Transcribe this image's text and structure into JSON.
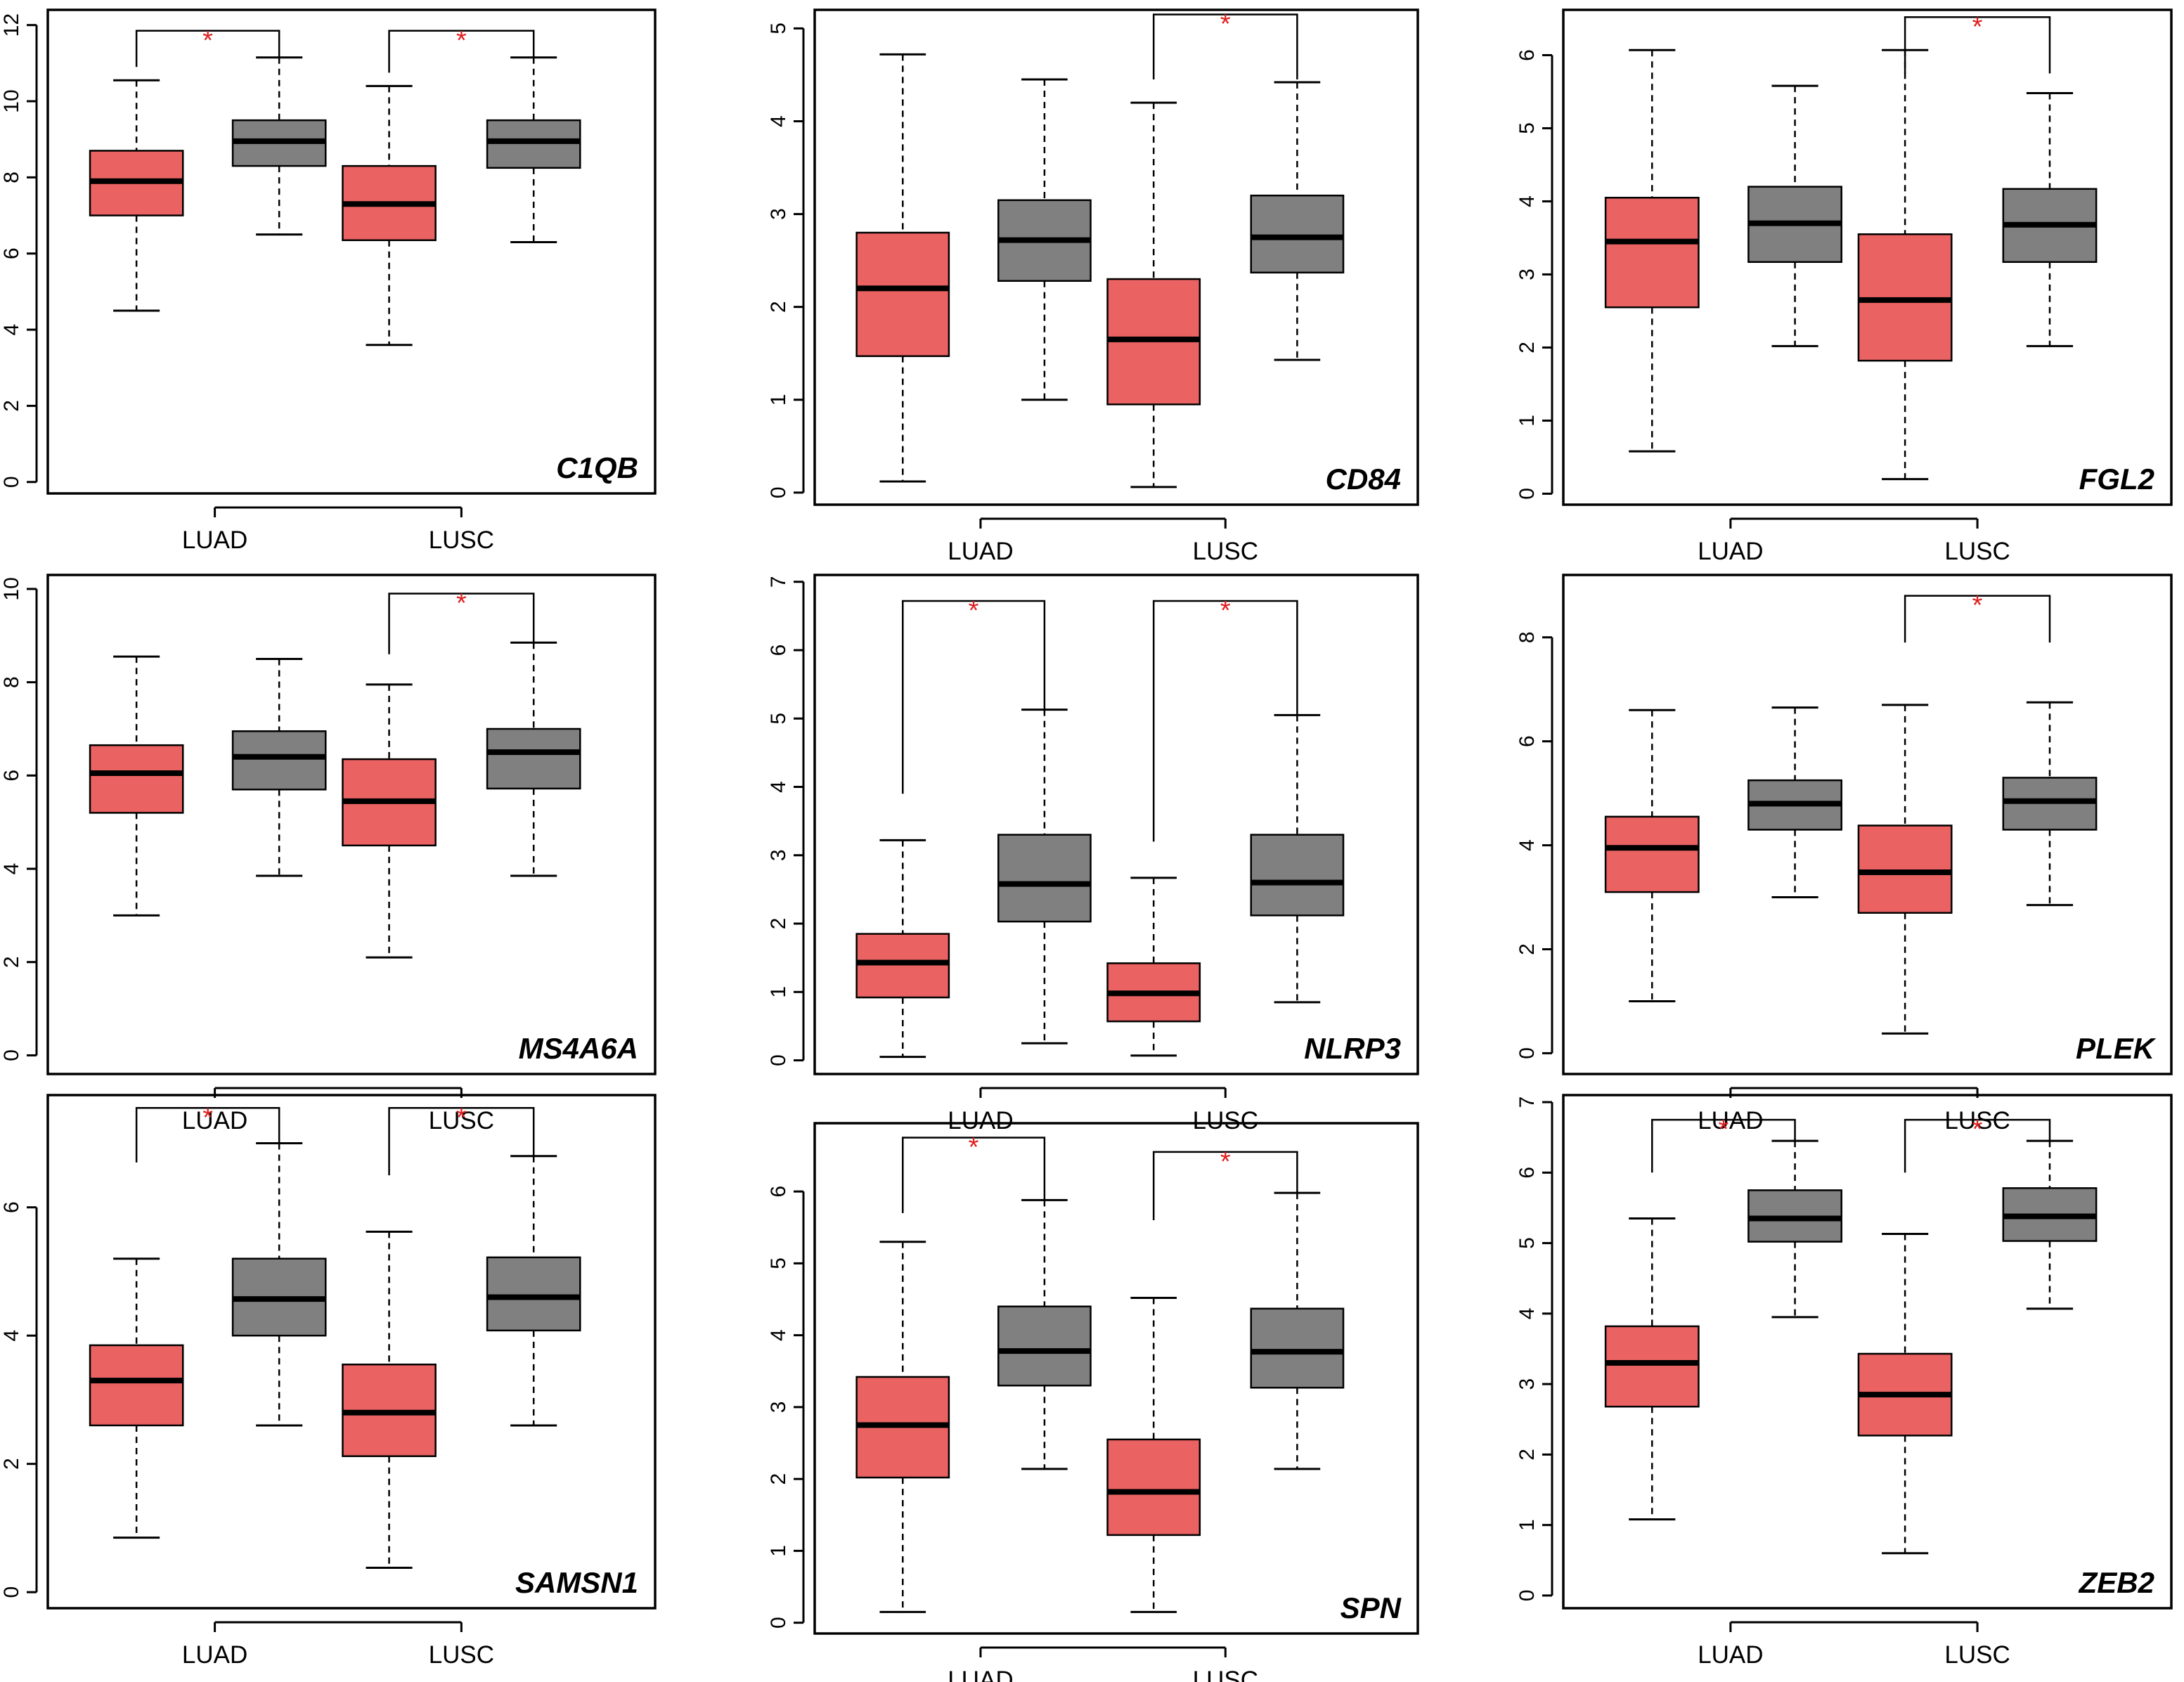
{
  "colors": {
    "tumor": "#ea6262",
    "normal": "#808080",
    "star": "#e02020"
  },
  "chart_data": [
    {
      "type": "box",
      "gene": "C1QB",
      "categories": [
        "LUAD",
        "LUSC"
      ],
      "yticks": [
        0,
        2,
        4,
        6,
        8,
        10,
        12
      ],
      "ylim": [
        -0.3,
        12.4
      ],
      "groups": [
        {
          "category": "LUAD",
          "tumor": {
            "min": 4.5,
            "q1": 7.0,
            "median": 7.9,
            "q3": 8.7,
            "max": 10.55
          },
          "normal": {
            "min": 6.5,
            "q1": 8.3,
            "median": 8.95,
            "q3": 9.5,
            "max": 11.15
          },
          "significant": true,
          "bracket": [
            10.9,
            11.85
          ]
        },
        {
          "category": "LUSC",
          "tumor": {
            "min": 3.6,
            "q1": 6.35,
            "median": 7.3,
            "q3": 8.3,
            "max": 10.4
          },
          "normal": {
            "min": 6.3,
            "q1": 8.25,
            "median": 8.95,
            "q3": 9.5,
            "max": 11.15
          },
          "significant": true,
          "bracket": [
            10.75,
            11.85
          ]
        }
      ]
    },
    {
      "type": "box",
      "gene": "CD84",
      "categories": [
        "LUAD",
        "LUSC"
      ],
      "yticks": [
        0,
        1,
        2,
        3,
        4,
        5
      ],
      "ylim": [
        -0.13,
        5.2
      ],
      "groups": [
        {
          "category": "LUAD",
          "tumor": {
            "min": 0.12,
            "q1": 1.47,
            "median": 2.2,
            "q3": 2.8,
            "max": 4.72
          },
          "normal": {
            "min": 1.0,
            "q1": 2.28,
            "median": 2.72,
            "q3": 3.15,
            "max": 4.45
          },
          "significant": false,
          "bracket": null
        },
        {
          "category": "LUSC",
          "tumor": {
            "min": 0.06,
            "q1": 0.95,
            "median": 1.65,
            "q3": 2.3,
            "max": 4.2
          },
          "normal": {
            "min": 1.43,
            "q1": 2.37,
            "median": 2.75,
            "q3": 3.2,
            "max": 4.42
          },
          "significant": true,
          "bracket": [
            4.45,
            5.15
          ]
        }
      ]
    },
    {
      "type": "box",
      "gene": "FGL2",
      "categories": [
        "LUAD",
        "LUSC"
      ],
      "yticks": [
        0,
        1,
        2,
        3,
        4,
        5,
        6
      ],
      "ylim": [
        -0.15,
        6.62
      ],
      "groups": [
        {
          "category": "LUAD",
          "tumor": {
            "min": 0.58,
            "q1": 2.55,
            "median": 3.45,
            "q3": 4.05,
            "max": 6.07
          },
          "normal": {
            "min": 2.02,
            "q1": 3.17,
            "median": 3.7,
            "q3": 4.2,
            "max": 5.58
          },
          "significant": false,
          "bracket": null
        },
        {
          "category": "LUSC",
          "tumor": {
            "min": 0.2,
            "q1": 1.82,
            "median": 2.65,
            "q3": 3.55,
            "max": 6.07
          },
          "normal": {
            "min": 2.02,
            "q1": 3.17,
            "median": 3.68,
            "q3": 4.17,
            "max": 5.48
          },
          "significant": true,
          "bracket": [
            5.75,
            6.52
          ]
        }
      ]
    },
    {
      "type": "box",
      "gene": "MS4A6A",
      "categories": [
        "LUAD",
        "LUSC"
      ],
      "yticks": [
        0,
        2,
        4,
        6,
        8,
        10
      ],
      "ylim": [
        -0.4,
        10.3
      ],
      "groups": [
        {
          "category": "LUAD",
          "tumor": {
            "min": 3.0,
            "q1": 5.2,
            "median": 6.05,
            "q3": 6.65,
            "max": 8.55
          },
          "normal": {
            "min": 3.85,
            "q1": 5.7,
            "median": 6.4,
            "q3": 6.95,
            "max": 8.5
          },
          "significant": false,
          "bracket": null
        },
        {
          "category": "LUSC",
          "tumor": {
            "min": 2.1,
            "q1": 4.5,
            "median": 5.45,
            "q3": 6.35,
            "max": 7.95
          },
          "normal": {
            "min": 3.85,
            "q1": 5.72,
            "median": 6.5,
            "q3": 7.0,
            "max": 8.85
          },
          "significant": true,
          "bracket": [
            8.6,
            9.9
          ]
        }
      ]
    },
    {
      "type": "box",
      "gene": "NLRP3",
      "categories": [
        "LUAD",
        "LUSC"
      ],
      "yticks": [
        0,
        1,
        2,
        3,
        4,
        5,
        6,
        7
      ],
      "ylim": [
        -0.2,
        7.1
      ],
      "groups": [
        {
          "category": "LUAD",
          "tumor": {
            "min": 0.05,
            "q1": 0.92,
            "median": 1.43,
            "q3": 1.85,
            "max": 3.22
          },
          "normal": {
            "min": 0.25,
            "q1": 2.03,
            "median": 2.58,
            "q3": 3.3,
            "max": 5.13
          },
          "significant": true,
          "bracket": [
            3.9,
            6.72
          ]
        },
        {
          "category": "LUSC",
          "tumor": {
            "min": 0.07,
            "q1": 0.57,
            "median": 0.98,
            "q3": 1.42,
            "max": 2.67
          },
          "normal": {
            "min": 0.85,
            "q1": 2.12,
            "median": 2.6,
            "q3": 3.3,
            "max": 5.05
          },
          "significant": true,
          "bracket": [
            3.2,
            6.72
          ]
        }
      ]
    },
    {
      "type": "box",
      "gene": "PLEK",
      "categories": [
        "LUAD",
        "LUSC"
      ],
      "yticks": [
        0,
        2,
        4,
        6,
        8
      ],
      "ylim": [
        -0.4,
        9.2
      ],
      "groups": [
        {
          "category": "LUAD",
          "tumor": {
            "min": 1.0,
            "q1": 3.1,
            "median": 3.95,
            "q3": 4.55,
            "max": 6.6
          },
          "normal": {
            "min": 3.0,
            "q1": 4.3,
            "median": 4.8,
            "q3": 5.25,
            "max": 6.65
          },
          "significant": false,
          "bracket": null
        },
        {
          "category": "LUSC",
          "tumor": {
            "min": 0.38,
            "q1": 2.7,
            "median": 3.48,
            "q3": 4.38,
            "max": 6.7
          },
          "normal": {
            "min": 2.85,
            "q1": 4.3,
            "median": 4.85,
            "q3": 5.3,
            "max": 6.75
          },
          "significant": true,
          "bracket": [
            7.9,
            8.8
          ]
        }
      ]
    },
    {
      "type": "box",
      "gene": "SAMSN1",
      "categories": [
        "LUAD",
        "LUSC"
      ],
      "yticks": [
        0,
        2,
        4,
        6
      ],
      "ylim": [
        -0.25,
        7.75
      ],
      "groups": [
        {
          "category": "LUAD",
          "tumor": {
            "min": 0.85,
            "q1": 2.6,
            "median": 3.3,
            "q3": 3.85,
            "max": 5.2
          },
          "normal": {
            "min": 2.6,
            "q1": 4.0,
            "median": 4.57,
            "q3": 5.2,
            "max": 7.0
          },
          "significant": true,
          "bracket": [
            6.7,
            7.55
          ]
        },
        {
          "category": "LUSC",
          "tumor": {
            "min": 0.38,
            "q1": 2.12,
            "median": 2.8,
            "q3": 3.55,
            "max": 5.62
          },
          "normal": {
            "min": 2.6,
            "q1": 4.08,
            "median": 4.6,
            "q3": 5.22,
            "max": 6.8
          },
          "significant": true,
          "bracket": [
            6.5,
            7.55
          ]
        }
      ]
    },
    {
      "type": "box",
      "gene": "SPN",
      "categories": [
        "LUAD",
        "LUSC"
      ],
      "yticks": [
        0,
        1,
        2,
        3,
        4,
        5,
        6
      ],
      "ylim": [
        -0.15,
        6.95
      ],
      "groups": [
        {
          "category": "LUAD",
          "tumor": {
            "min": 0.15,
            "q1": 2.02,
            "median": 2.75,
            "q3": 3.42,
            "max": 5.3
          },
          "normal": {
            "min": 2.14,
            "q1": 3.3,
            "median": 3.78,
            "q3": 4.4,
            "max": 5.88
          },
          "significant": true,
          "bracket": [
            5.7,
            6.75
          ]
        },
        {
          "category": "LUSC",
          "tumor": {
            "min": 0.15,
            "q1": 1.22,
            "median": 1.82,
            "q3": 2.55,
            "max": 4.52
          },
          "normal": {
            "min": 2.14,
            "q1": 3.27,
            "median": 3.77,
            "q3": 4.37,
            "max": 5.98
          },
          "significant": true,
          "bracket": [
            5.6,
            6.55
          ]
        }
      ]
    },
    {
      "type": "box",
      "gene": "ZEB2",
      "categories": [
        "LUAD",
        "LUSC"
      ],
      "yticks": [
        0,
        1,
        2,
        3,
        4,
        5,
        6,
        7
      ],
      "ylim": [
        -0.18,
        7.1
      ],
      "groups": [
        {
          "category": "LUAD",
          "tumor": {
            "min": 1.08,
            "q1": 2.68,
            "median": 3.3,
            "q3": 3.82,
            "max": 5.35
          },
          "normal": {
            "min": 3.95,
            "q1": 5.02,
            "median": 5.35,
            "q3": 5.75,
            "max": 6.45
          },
          "significant": true,
          "bracket": [
            6.0,
            6.75
          ]
        },
        {
          "category": "LUSC",
          "tumor": {
            "min": 0.6,
            "q1": 2.27,
            "median": 2.85,
            "q3": 3.43,
            "max": 5.13
          },
          "normal": {
            "min": 4.07,
            "q1": 5.03,
            "median": 5.38,
            "q3": 5.78,
            "max": 6.45
          },
          "significant": true,
          "bracket": [
            6.0,
            6.75
          ]
        }
      ]
    }
  ]
}
